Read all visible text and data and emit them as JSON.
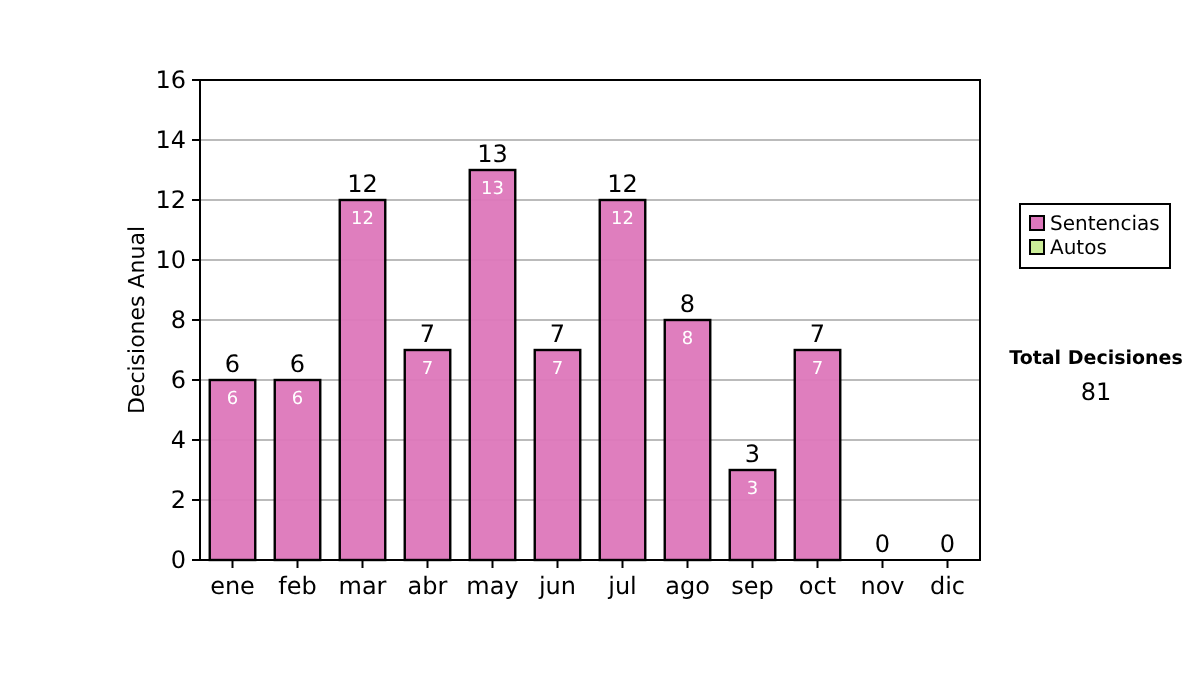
{
  "chart_data": {
    "type": "bar",
    "stacked": true,
    "ylabel": "Decisiones Anual",
    "categories": [
      "ene",
      "feb",
      "mar",
      "abr",
      "may",
      "jun",
      "jul",
      "ago",
      "sep",
      "oct",
      "nov",
      "dic"
    ],
    "series": [
      {
        "name": "Sentencias",
        "color": "#dd77bb",
        "values": [
          6,
          6,
          12,
          7,
          13,
          7,
          12,
          8,
          3,
          7,
          0,
          0
        ],
        "value_labels": [
          "6",
          "6",
          "12",
          "7",
          "13",
          "7",
          "12",
          "8",
          "3",
          "7",
          null,
          null
        ]
      },
      {
        "name": "Autos",
        "color": "#ccee99",
        "values": [
          0,
          0,
          0,
          0,
          0,
          0,
          0,
          0,
          0,
          0,
          0,
          0
        ]
      }
    ],
    "totals": [
      "6",
      "6",
      "12",
      "7",
      "13",
      "7",
      "12",
      "8",
      "3",
      "7",
      "0",
      "0"
    ],
    "ylim": [
      0,
      16
    ],
    "yticks": [
      0,
      2,
      4,
      6,
      8,
      10,
      12,
      14,
      16
    ],
    "grid": "y",
    "legend": "right",
    "annotations": [
      "Total Decisiones",
      "81"
    ]
  }
}
